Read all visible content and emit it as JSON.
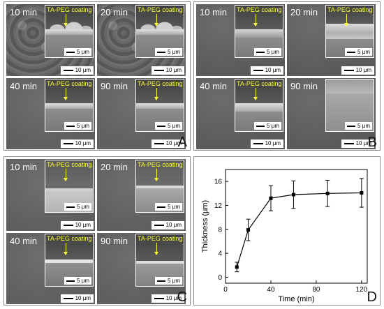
{
  "figure": {
    "panels": [
      {
        "letter": "A",
        "images": [
          {
            "time": "10 min",
            "inset_caption": "TA-PEG coating",
            "inset_scale": "5 μm",
            "main_scale": "10 μm"
          },
          {
            "time": "20 min",
            "inset_caption": "TA-PEG coating",
            "inset_scale": "5 μm",
            "main_scale": "10 μm"
          },
          {
            "time": "40 min",
            "inset_caption": "TA-PEG coating",
            "inset_scale": "5 μm",
            "main_scale": "10 μm"
          },
          {
            "time": "90 min",
            "inset_caption": "TA-PEG coating",
            "inset_scale": "5 μm",
            "main_scale": "10 μm"
          }
        ]
      },
      {
        "letter": "B",
        "images": [
          {
            "time": "10 min",
            "inset_caption": "TA-PEG coating",
            "inset_scale": "5 μm",
            "main_scale": "10 μm"
          },
          {
            "time": "20 min",
            "inset_caption": "TA-PEG coating",
            "inset_scale": "5 μm",
            "main_scale": "10 μm"
          },
          {
            "time": "40 min",
            "inset_caption": "TA-PEG coating",
            "inset_scale": "5 μm",
            "main_scale": "10 μm"
          },
          {
            "time": "90 min",
            "inset_caption": "",
            "inset_scale": "5 μm",
            "main_scale": "10 μm"
          }
        ]
      },
      {
        "letter": "C",
        "images": [
          {
            "time": "10 min",
            "inset_caption": "TA-PEG coating",
            "inset_scale": "5 μm",
            "main_scale": "10 μm"
          },
          {
            "time": "20 min",
            "inset_caption": "TA-PEG coating",
            "inset_scale": "5 μm",
            "main_scale": "10 μm"
          },
          {
            "time": "40 min",
            "inset_caption": "TA-PEG coating",
            "inset_scale": "5 μm",
            "main_scale": "10 μm"
          },
          {
            "time": "90 min",
            "inset_caption": "TA-PEG coating",
            "inset_scale": "5 μm",
            "main_scale": "10 μm"
          }
        ]
      }
    ],
    "chart_panel_letter": "D"
  },
  "chart_data": {
    "type": "line",
    "title": "",
    "xlabel": "Time (min)",
    "ylabel": "Thickness (μm)",
    "xlim": [
      0,
      125
    ],
    "ylim": [
      -1,
      18
    ],
    "xticks": [
      0,
      40,
      80,
      120
    ],
    "yticks": [
      0,
      4,
      8,
      12,
      16
    ],
    "grid": false,
    "legend": "none",
    "marker": "square",
    "line_color": "#000000",
    "series": [
      {
        "x": [
          10,
          20,
          40,
          60,
          90,
          120
        ],
        "y": [
          1.7,
          7.9,
          13.2,
          13.8,
          14.0,
          14.1
        ],
        "error": [
          0.8,
          1.8,
          2.1,
          2.3,
          2.2,
          2.4
        ]
      }
    ]
  }
}
